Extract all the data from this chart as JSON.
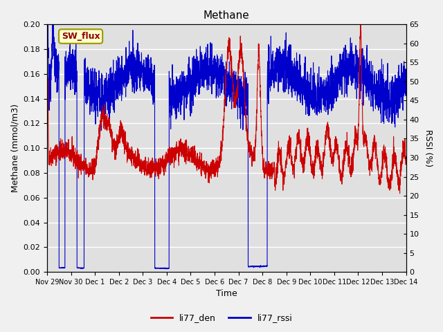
{
  "title": "Methane",
  "xlabel": "Time",
  "ylabel_left": "Methane (mmol/m3)",
  "ylabel_right": "RSSI (%)",
  "annotation": "SW_flux",
  "ylim_left": [
    0.0,
    0.2
  ],
  "ylim_right": [
    0,
    65
  ],
  "yticks_left": [
    0.0,
    0.02,
    0.04,
    0.06,
    0.08,
    0.1,
    0.12,
    0.14,
    0.16,
    0.18,
    0.2
  ],
  "yticks_right": [
    0,
    5,
    10,
    15,
    20,
    25,
    30,
    35,
    40,
    45,
    50,
    55,
    60,
    65
  ],
  "color_red": "#cc0000",
  "color_blue": "#0000cc",
  "bg_color": "#e0e0e0",
  "legend_labels": [
    "li77_den",
    "li77_rssi"
  ],
  "xtick_positions": [
    0,
    1,
    2,
    3,
    4,
    5,
    6,
    7,
    8,
    9,
    10,
    11,
    12,
    13,
    14,
    15
  ],
  "xtick_labels": [
    "Nov 29",
    "Nov 30",
    "Dec 1",
    "Dec 2",
    "Dec 3",
    "Dec 4",
    "Dec 5",
    "Dec 6",
    "Dec 7",
    "Dec 8",
    "Dec 9",
    "Dec 10",
    "Dec 11",
    "Dec 12",
    "Dec 13",
    "Dec 14"
  ]
}
